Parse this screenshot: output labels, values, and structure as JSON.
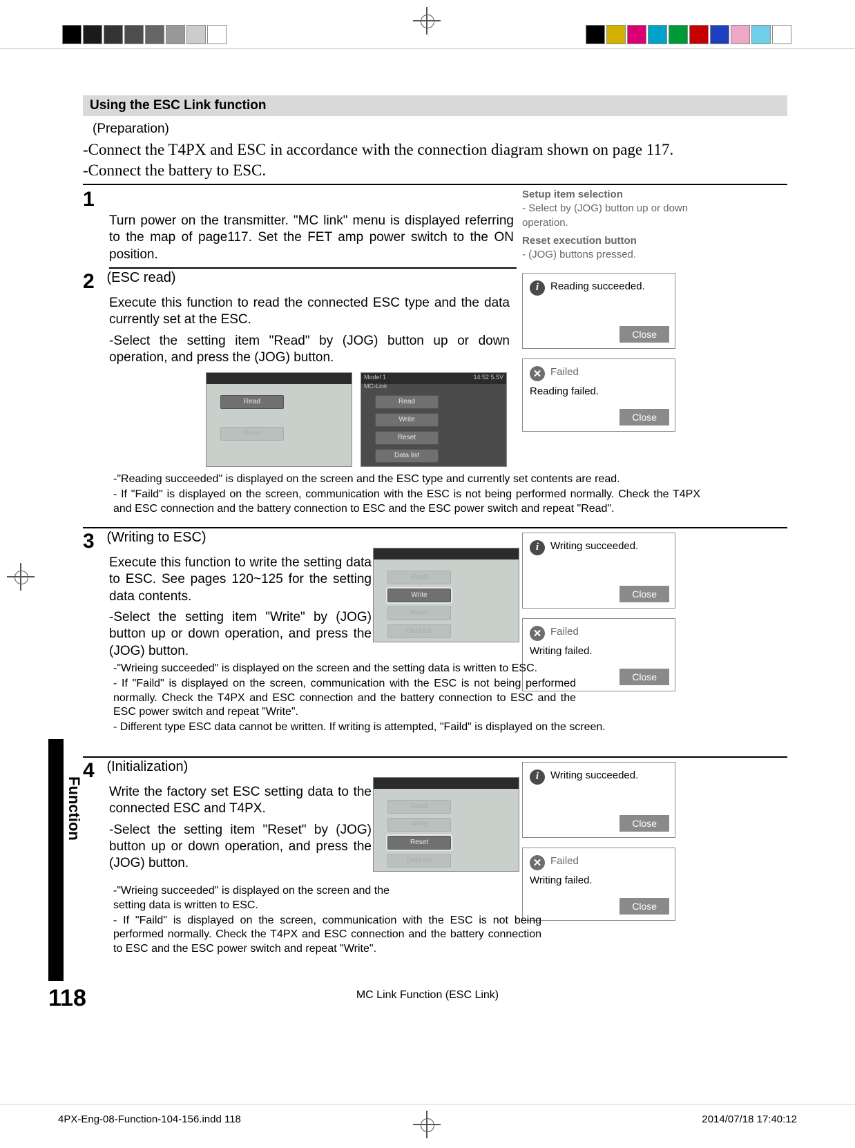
{
  "printbar": {
    "grays": [
      "#000000",
      "#1a1a1a",
      "#333333",
      "#4d4d4d",
      "#666666",
      "#999999",
      "#cccccc",
      "#ffffff"
    ],
    "colors": [
      "#000000",
      "#d4b100",
      "#d90073",
      "#00a2c7",
      "#009938",
      "#c40000",
      "#1e3fbf",
      "#f0a8c8",
      "#70cfe8",
      "#ffffff"
    ]
  },
  "header": {
    "title": "Using the ESC Link function"
  },
  "prep": {
    "label": "(Preparation)",
    "line1": "-Connect the T4PX and ESC in accordance with the connection diagram shown on page 117.",
    "line2": "-Connect the battery to ESC."
  },
  "step1": {
    "num": "1",
    "body": "Turn power on the transmitter. \"MC link\" menu is displayed referring to the map of page117.  Set the FET amp power switch to the ON position."
  },
  "helpbox": {
    "t1": "Setup item selection",
    "t1b": "- Select by (JOG) button up or down operation.",
    "t2": "Reset execution button",
    "t2b": "- (JOG) buttons pressed."
  },
  "step2": {
    "num": "2",
    "title": "(ESC read)",
    "p1": "Execute this function to read the connected ESC type and the data currently set at the ESC.",
    "p2": "-Select the setting item \"Read\" by (JOG) button up or down operation, and  press the (JOG) button.",
    "note1": "-\"Reading succeeded\" is displayed on the screen and the ESC type and currently set contents are read.",
    "note2": "- If \"Faild\" is displayed on the screen, communication with the ESC is not being performed normally. Check the T4PX and ESC connection and the battery connection to ESC and the ESC power switch and repeat \"Read\"."
  },
  "step3": {
    "num": "3",
    "title": "(Writing to ESC)",
    "p1": "Execute this function to write the setting data to ESC. See pages 120~125 for the setting data contents.",
    "p2": "-Select the setting item \"Write\" by (JOG) button up or down operation, and  press the (JOG) button.",
    "note1": "-\"Wrieing succeeded\" is displayed on the screen and the setting data is written to ESC.",
    "note2": "- If \"Faild\" is displayed on the screen, communication with the ESC is not being performed normally. Check the T4PX and ESC connection and the battery connection to ESC and the ESC power switch and repeat \"Write\".",
    "note3": "- Different type ESC data cannot be written. If writing is attempted, \"Faild\"  is displayed on the screen."
  },
  "step4": {
    "num": "4",
    "title": "(Initialization)",
    "p1": "Write the factory set ESC setting data to the connected ESC and T4PX.",
    "p2": "-Select the setting item \"Reset\" by (JOG) button up or down operation, and  press the (JOG) button.",
    "note1": "-\"Wrieing succeeded\" is displayed on the screen and the setting data is written to ESC.",
    "note2": "- If \"Faild\" is displayed on the screen, communication with the ESC is not being performed normally. Check the T4PX and ESC connection and the battery connection to ESC and the ESC power switch and repeat \"Write\"."
  },
  "shots": {
    "model": "Model 1",
    "clock": "14:52 5.5V",
    "app": "MC-Link",
    "read": "Read",
    "write": "Write",
    "reset": "Reset",
    "datalist": "Data list"
  },
  "dialog": {
    "read_ok": "Reading succeeded.",
    "read_fail_t": "Failed",
    "read_fail_s": "Reading failed.",
    "write_ok": "Writing succeeded.",
    "write_fail_t": "Failed",
    "write_fail_s": "Writing failed.",
    "close": "Close"
  },
  "sidetab": "Function",
  "pagenum": "118",
  "footer": "MC Link Function  (ESC Link)",
  "indd": {
    "left": "4PX-Eng-08-Function-104-156.indd   118",
    "right": "2014/07/18   17:40:12"
  }
}
